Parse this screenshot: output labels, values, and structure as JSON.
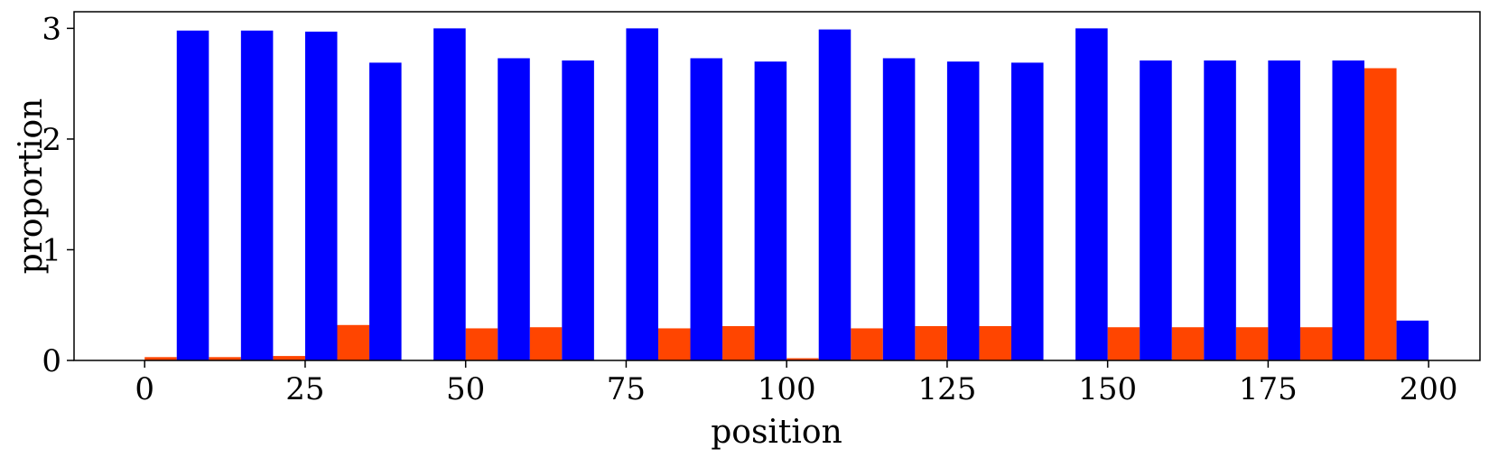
{
  "chart_data": {
    "type": "bar",
    "xlabel": "position",
    "ylabel": "proportion",
    "xlim": [
      -11,
      208
    ],
    "ylim": [
      0,
      3.15
    ],
    "x_ticks": [
      0,
      25,
      50,
      75,
      100,
      125,
      150,
      175,
      200
    ],
    "y_ticks": [
      0,
      1,
      2,
      3
    ],
    "bin_width": 10,
    "grid": false,
    "legend": "none",
    "series": [
      {
        "color": "#ff4500",
        "bins": [
          {
            "x": 0,
            "value": 0.03
          },
          {
            "x": 10,
            "value": 0.03
          },
          {
            "x": 20,
            "value": 0.04
          },
          {
            "x": 30,
            "value": 0.32
          },
          {
            "x": 40,
            "value": 0.0
          },
          {
            "x": 50,
            "value": 0.29
          },
          {
            "x": 60,
            "value": 0.3
          },
          {
            "x": 70,
            "value": 0.0
          },
          {
            "x": 80,
            "value": 0.29
          },
          {
            "x": 90,
            "value": 0.31
          },
          {
            "x": 100,
            "value": 0.02
          },
          {
            "x": 110,
            "value": 0.29
          },
          {
            "x": 120,
            "value": 0.31
          },
          {
            "x": 130,
            "value": 0.31
          },
          {
            "x": 140,
            "value": 0.0
          },
          {
            "x": 150,
            "value": 0.3
          },
          {
            "x": 160,
            "value": 0.3
          },
          {
            "x": 170,
            "value": 0.3
          },
          {
            "x": 180,
            "value": 0.3
          },
          {
            "x": 190,
            "value": 2.64
          }
        ]
      },
      {
        "color": "#0000ff",
        "bins": [
          {
            "x": 0,
            "value": 2.98
          },
          {
            "x": 10,
            "value": 2.98
          },
          {
            "x": 20,
            "value": 2.97
          },
          {
            "x": 30,
            "value": 2.69
          },
          {
            "x": 40,
            "value": 3.0
          },
          {
            "x": 50,
            "value": 2.73
          },
          {
            "x": 60,
            "value": 2.71
          },
          {
            "x": 70,
            "value": 3.0
          },
          {
            "x": 80,
            "value": 2.73
          },
          {
            "x": 90,
            "value": 2.7
          },
          {
            "x": 100,
            "value": 2.99
          },
          {
            "x": 110,
            "value": 2.73
          },
          {
            "x": 120,
            "value": 2.7
          },
          {
            "x": 130,
            "value": 2.69
          },
          {
            "x": 140,
            "value": 3.0
          },
          {
            "x": 150,
            "value": 2.71
          },
          {
            "x": 160,
            "value": 2.71
          },
          {
            "x": 170,
            "value": 2.71
          },
          {
            "x": 180,
            "value": 2.71
          },
          {
            "x": 190,
            "value": 0.36
          }
        ]
      }
    ]
  }
}
